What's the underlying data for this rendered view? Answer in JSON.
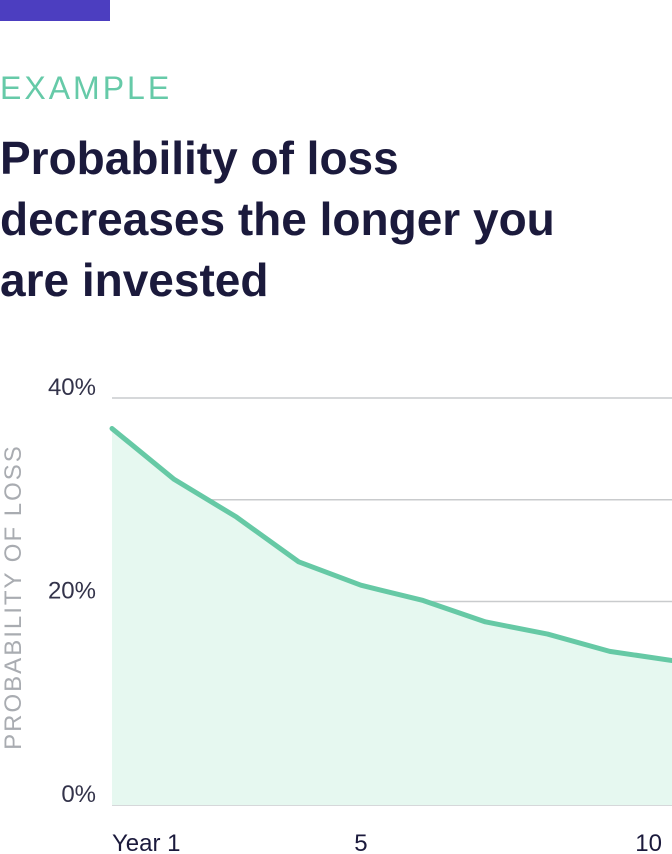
{
  "header": {
    "kicker": "EXAMPLE",
    "title_lines": [
      "Probability of loss",
      "decreases the longer you",
      "are invested"
    ]
  },
  "colors": {
    "accent_bar": "#4c3ec0",
    "kicker": "#66caa8",
    "line": "#66c9a5",
    "area": "#e6f8f0",
    "grid": "#c9cbcd",
    "axis_label": "#a9acb1"
  },
  "chart_data": {
    "type": "area",
    "ylabel": "PROBABILITY OF LOSS",
    "xlabel": "",
    "x": [
      1,
      2,
      3,
      4,
      5,
      6,
      7,
      8,
      9,
      10
    ],
    "x_tick_labels": [
      {
        "x": 1,
        "label": "Year 1"
      },
      {
        "x": 5,
        "label": "5"
      },
      {
        "x": 10,
        "label": "10"
      }
    ],
    "y_tick_labels": [
      {
        "y": 0,
        "label": "0%"
      },
      {
        "y": 20,
        "label": "20%"
      },
      {
        "y": 40,
        "label": "40%"
      }
    ],
    "gridlines_y": [
      0,
      10,
      20,
      30,
      40
    ],
    "series": [
      {
        "values": [
          37,
          32,
          28.3,
          23.9,
          21.6,
          20.1,
          18,
          16.8,
          15.1,
          14.2
        ]
      }
    ],
    "ylim": [
      0,
      40
    ],
    "xlim": [
      1,
      10
    ],
    "grid": true
  }
}
